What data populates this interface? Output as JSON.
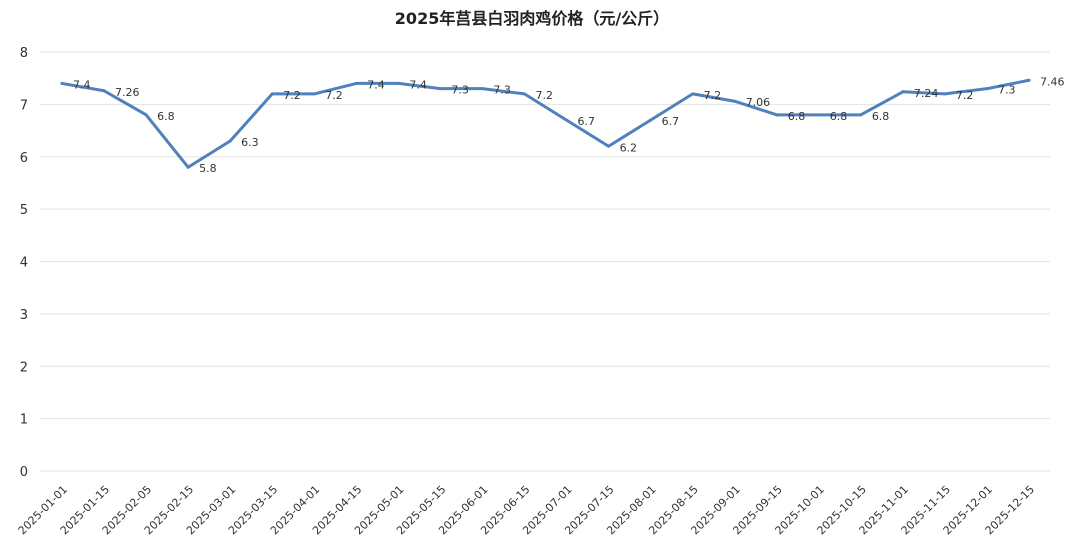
{
  "chart_data": {
    "type": "line",
    "title": "2025年莒县白羽肉鸡价格（元/公斤）",
    "xlabel": "",
    "ylabel": "",
    "ylim": [
      0,
      8
    ],
    "yticks": [
      "0",
      "1",
      "2",
      "3",
      "4",
      "5",
      "6",
      "7",
      "8"
    ],
    "grid": true,
    "legend": "none",
    "colors": {
      "line": "#4f81bd",
      "grid": "#e3e3e3"
    },
    "categories": [
      "2025-01-01",
      "2025-01-15",
      "2025-02-05",
      "2025-02-15",
      "2025-03-01",
      "2025-03-15",
      "2025-04-01",
      "2025-04-15",
      "2025-05-01",
      "2025-05-15",
      "2025-06-01",
      "2025-06-15",
      "2025-07-01",
      "2025-07-15",
      "2025-08-01",
      "2025-08-15",
      "2025-09-01",
      "2025-09-15",
      "2025-10-01",
      "2025-10-15",
      "2025-11-01",
      "2025-11-15",
      "2025-12-01",
      "2025-12-15"
    ],
    "series": [
      {
        "values": [
          7.4,
          7.26,
          6.8,
          5.8,
          6.3,
          7.2,
          7.2,
          7.4,
          7.4,
          7.3,
          7.3,
          7.2,
          6.7,
          6.2,
          6.7,
          7.2,
          7.06,
          6.8,
          6.8,
          6.8,
          7.24,
          7.2,
          7.3,
          7.46
        ],
        "labels": [
          "7.4",
          "7.26",
          "6.8",
          "5.8",
          "6.3",
          "7.2",
          "7.2",
          "7.4",
          "7.4",
          "7.3",
          "7.3",
          "7.2",
          "6.7",
          "6.2",
          "6.7",
          "7.2",
          "7.06",
          "6.8",
          "6.8",
          "6.8",
          "7.24",
          "7.2",
          "7.3",
          "7.46"
        ]
      }
    ]
  }
}
